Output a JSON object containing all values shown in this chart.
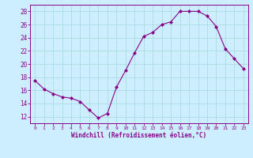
{
  "x": [
    0,
    1,
    2,
    3,
    4,
    5,
    6,
    7,
    8,
    9,
    10,
    11,
    12,
    13,
    14,
    15,
    16,
    17,
    18,
    19,
    20,
    21,
    22,
    23
  ],
  "y": [
    17.5,
    16.2,
    15.5,
    15.0,
    14.8,
    14.3,
    13.0,
    11.8,
    12.5,
    16.5,
    19.0,
    21.7,
    24.2,
    24.8,
    26.0,
    26.4,
    28.0,
    28.0,
    28.0,
    27.3,
    25.7,
    22.3,
    20.8,
    19.3
  ],
  "line_color": "#8b008b",
  "marker": "D",
  "marker_size": 2,
  "bg_color": "#cceeff",
  "grid_color": "#aadddd",
  "xlabel": "Windchill (Refroidissement éolien,°C)",
  "ylabel": "",
  "xlim": [
    -0.5,
    23.5
  ],
  "ylim": [
    11,
    29
  ],
  "yticks": [
    12,
    14,
    16,
    18,
    20,
    22,
    24,
    26,
    28
  ],
  "xticks": [
    0,
    1,
    2,
    3,
    4,
    5,
    6,
    7,
    8,
    9,
    10,
    11,
    12,
    13,
    14,
    15,
    16,
    17,
    18,
    19,
    20,
    21,
    22,
    23
  ],
  "tick_color": "#8b008b",
  "label_color": "#8b008b",
  "spine_color": "#8b008b"
}
